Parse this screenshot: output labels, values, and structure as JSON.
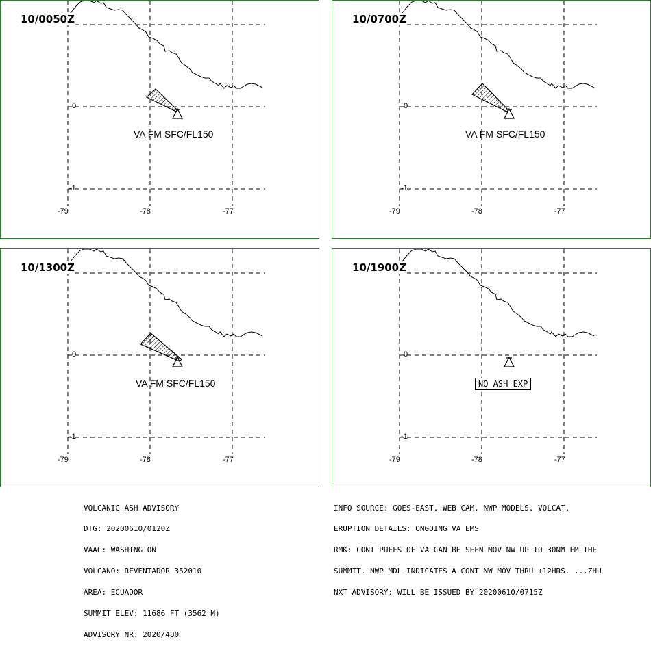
{
  "panels": [
    {
      "time": "10/0050Z",
      "label": "VA FM SFC/FL150",
      "has_ash": true
    },
    {
      "time": "10/0700Z",
      "label": "VA FM SFC/FL150",
      "has_ash": true
    },
    {
      "time": "10/1300Z",
      "label": "VA FM SFC/FL150",
      "has_ash": true
    },
    {
      "time": "10/1900Z",
      "label": "NO ASH EXP",
      "has_ash": false
    }
  ],
  "axes": {
    "lon_ticks": [
      "-79",
      "-78",
      "-77"
    ],
    "lat_ticks": [
      "0",
      "-1"
    ]
  },
  "advisory_left": [
    "VOLCANIC ASH ADVISORY",
    "DTG: 20200610/0120Z",
    "VAAC: WASHINGTON",
    "VOLCANO: REVENTADOR 352010",
    "AREA: ECUADOR",
    "SUMMIT ELEV: 11686 FT (3562 M)",
    "ADVISORY NR: 2020/480"
  ],
  "advisory_right": [
    "INFO SOURCE: GOES-EAST. WEB CAM. NWP MODELS. VOLCAT.",
    "ERUPTION DETAILS: ONGOING VA EMS",
    "RMK: CONT PUFFS OF VA CAN BE SEEN MOV NW UP TO 30NM FM THE",
    "SUMMIT. NWP MDL INDICATES A CONT NW MOV THRU +12HRS. ...ZHU",
    "NXT ADVISORY: WILL BE ISSUED BY 20200610/0715Z"
  ],
  "colors": {
    "panel_border": "#2e7d2e",
    "lines": "#000000"
  }
}
